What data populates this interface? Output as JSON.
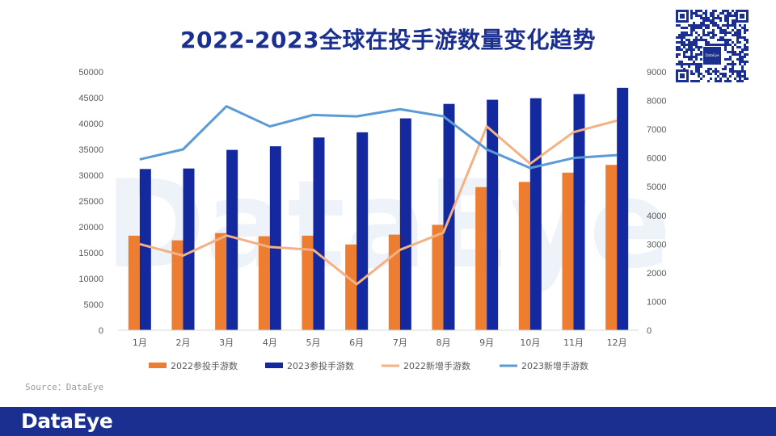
{
  "title": "2022-2023全球在投手游数量变化趋势",
  "source": "Source：DataEye",
  "footer_logo": "DataEye",
  "watermark": "DataEye",
  "qr_logo": "DataEye",
  "chart_data": {
    "type": "bar",
    "title": "2022-2023全球在投手游数量变化趋势",
    "categories": [
      "1月",
      "2月",
      "3月",
      "4月",
      "5月",
      "6月",
      "7月",
      "8月",
      "9月",
      "10月",
      "11月",
      "12月"
    ],
    "series": [
      {
        "name": "2022参投手游数",
        "type": "bar",
        "axis": "left",
        "color": "#ed7d31",
        "values": [
          18300,
          17400,
          18800,
          18200,
          18300,
          16600,
          18500,
          20400,
          27700,
          28700,
          30500,
          32000
        ]
      },
      {
        "name": "2023参投手游数",
        "type": "bar",
        "axis": "left",
        "color": "#15299e",
        "values": [
          31200,
          31300,
          34900,
          35600,
          37300,
          38300,
          41000,
          43800,
          44600,
          44900,
          45700,
          46900
        ]
      },
      {
        "name": "2022新增手游数",
        "type": "line",
        "axis": "right",
        "color": "#f4b183",
        "values": [
          3000,
          2600,
          3300,
          2900,
          2800,
          1600,
          2800,
          3400,
          7100,
          5800,
          6900,
          7300
        ]
      },
      {
        "name": "2023新增手游数",
        "type": "line",
        "axis": "right",
        "color": "#5b9bd5",
        "values": [
          5950,
          6300,
          7800,
          7100,
          7500,
          7450,
          7700,
          7450,
          6300,
          5650,
          6000,
          6100
        ]
      }
    ],
    "ylim_left": [
      0,
      50000
    ],
    "yticks_left": [
      "0",
      "5000",
      "10000",
      "15000",
      "20000",
      "25000",
      "30000",
      "35000",
      "40000",
      "45000",
      "50000"
    ],
    "ylim_right": [
      0,
      9000
    ],
    "yticks_right": [
      "0",
      "1000",
      "2000",
      "3000",
      "4000",
      "5000",
      "6000",
      "7000",
      "8000",
      "9000"
    ],
    "grid": false,
    "legend_position": "bottom"
  }
}
